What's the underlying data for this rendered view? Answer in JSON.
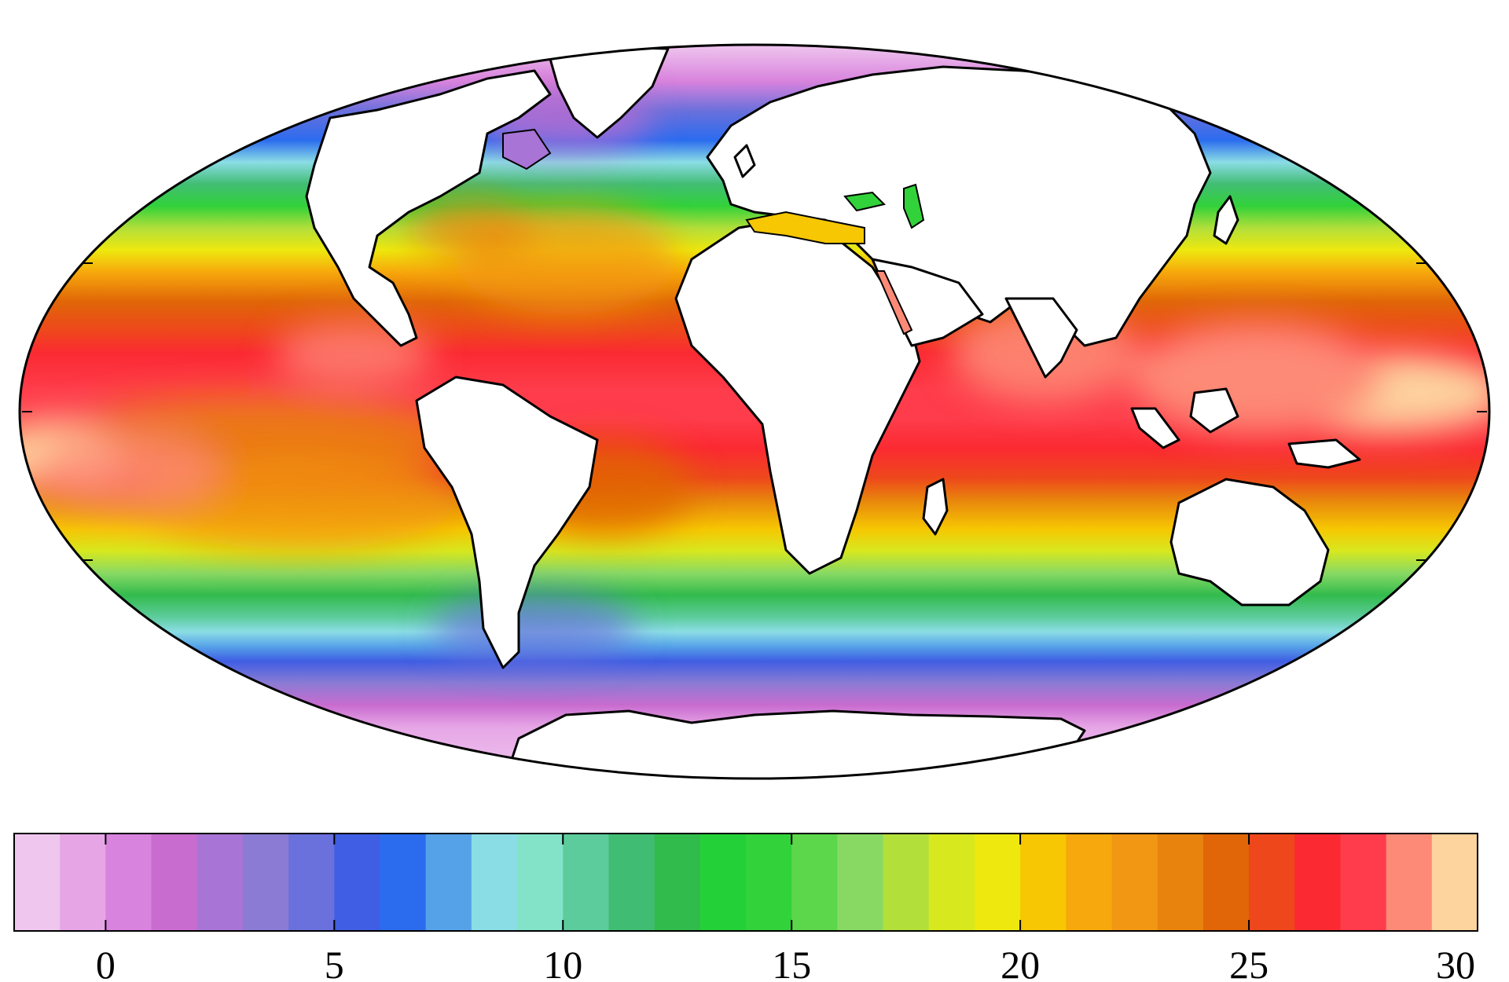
{
  "map": {
    "projection": "Mollweide",
    "coastline_color": "#000000",
    "land_color": "#ffffff",
    "frame_color": "#000000",
    "temperature_bands": [
      {
        "lat_band": "north-polar",
        "approx_value": -1
      },
      {
        "lat_band": "north-subpolar",
        "approx_value": 6
      },
      {
        "lat_band": "north-temperate",
        "approx_value": 14
      },
      {
        "lat_band": "north-subtropical",
        "approx_value": 22
      },
      {
        "lat_band": "tropical",
        "approx_value": 27
      },
      {
        "lat_band": "western-pacific-warm-pool",
        "approx_value": 29.5
      },
      {
        "lat_band": "south-subtropical",
        "approx_value": 21
      },
      {
        "lat_band": "south-temperate",
        "approx_value": 14
      },
      {
        "lat_band": "southern-ocean",
        "approx_value": 4
      },
      {
        "lat_band": "antarctic",
        "approx_value": -1
      }
    ]
  },
  "colorbar": {
    "min": -2,
    "max": 30,
    "step": 1,
    "colors": [
      "#efc6ee",
      "#e6a6e6",
      "#d883dd",
      "#c96ccf",
      "#a874d5",
      "#8b7bd4",
      "#6a70dc",
      "#3f5ee3",
      "#2b6cef",
      "#56a2e8",
      "#8bdde5",
      "#83e3c8",
      "#5dcc9c",
      "#41bd73",
      "#32bb4d",
      "#24d038",
      "#32d23a",
      "#5cd64b",
      "#88d964",
      "#b3df3a",
      "#d7e81f",
      "#eee80e",
      "#f6c702",
      "#f7a80c",
      "#f29713",
      "#e8840d",
      "#e06607",
      "#ee471c",
      "#fb2a32",
      "#fe3c4b",
      "#fd8a76",
      "#fdd39e"
    ],
    "ticks": [
      "0",
      "5",
      "10",
      "15",
      "20",
      "25",
      "30"
    ],
    "tick_values": [
      0,
      5,
      10,
      15,
      20,
      25,
      30
    ]
  }
}
